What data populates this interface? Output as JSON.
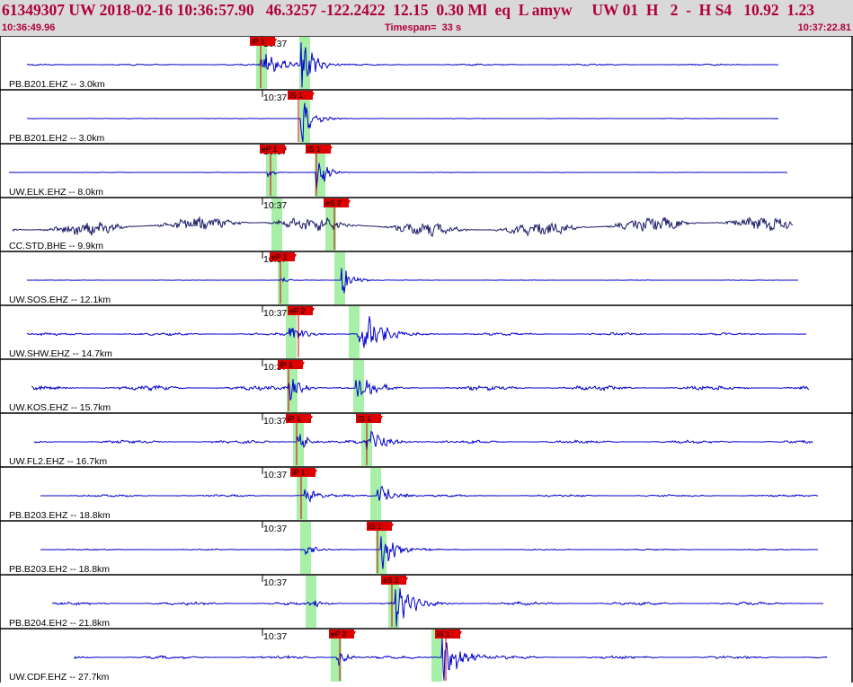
{
  "header": {
    "event_line": "61349307 UW 2018-02-16 10:36:57.90   46.3257 -122.2422  12.15  0.30 Ml  eq  L amyw     UW 01  H   2  -  H S4   10.92  1.23",
    "start_time": "10:36:49.96",
    "timespan": "Timespan=  33 s",
    "end_time": "10:37:22.81"
  },
  "minute_label": "10:37",
  "colors": {
    "trace": "#0000cc",
    "trace_dark": "#1a1a66",
    "pick_bg": "#dd0000",
    "band": "#a8f0a8",
    "header_text": "#b0003a",
    "header_bg": "#d9d9d9"
  },
  "panels": [
    {
      "station": "PB.B201.EHZ -- 3.0km",
      "picks": [
        {
          "label": "iP 1",
          "x": 278
        }
      ],
      "bands": [
        285,
        333
      ],
      "noise": 0.18,
      "onsets": [
        [
          290,
          2.0,
          0.05
        ],
        [
          335,
          4.2,
          0.08
        ]
      ],
      "start": 30,
      "end": 866
    },
    {
      "station": "PB.B201.EH2 -- 3.0km",
      "picks": [
        {
          "label": "iS 1",
          "x": 320
        }
      ],
      "bands": [
        333
      ],
      "noise": 0.05,
      "onsets": [
        [
          335,
          3.8,
          0.09
        ]
      ],
      "start": 30,
      "end": 866
    },
    {
      "station": "UW.ELK.EHZ -- 8.0km",
      "picks": [
        {
          "label": "eP 1",
          "x": 289
        },
        {
          "label": "iS 1",
          "x": 340
        }
      ],
      "bands": [
        296,
        350
      ],
      "noise": 0.05,
      "onsets": [
        [
          298,
          0.9,
          0.15
        ],
        [
          352,
          3.5,
          0.12
        ]
      ],
      "start": 10,
      "end": 876
    },
    {
      "station": "CC.STD.BHE -- 9.9km",
      "picks": [
        {
          "label": "eS 2",
          "x": 360
        }
      ],
      "bands": [
        302,
        362
      ],
      "noise": 1.6,
      "onsets": [],
      "start": 14,
      "end": 882,
      "dark": true
    },
    {
      "station": "UW.SOS.EHZ -- 12.1km",
      "picks": [
        {
          "label": "eP 1",
          "x": 300
        }
      ],
      "bands": [
        309,
        372
      ],
      "noise": 0.05,
      "onsets": [
        [
          312,
          0.8,
          0.2
        ],
        [
          380,
          3.2,
          0.11
        ]
      ],
      "start": 30,
      "end": 888
    },
    {
      "station": "UW.SHW.EHZ -- 14.7km",
      "picks": [
        {
          "label": "eP 2",
          "x": 320
        }
      ],
      "bands": [
        318,
        388
      ],
      "noise": 0.3,
      "onsets": [
        [
          322,
          2.0,
          0.08
        ],
        [
          398,
          4.5,
          0.05
        ]
      ],
      "start": 30,
      "end": 897
    },
    {
      "station": "UW.KOS.EHZ -- 15.7km",
      "picks": [
        {
          "label": "iP 1",
          "x": 309
        }
      ],
      "bands": [
        319,
        393
      ],
      "noise": 0.55,
      "onsets": [
        [
          321,
          2.2,
          0.09
        ],
        [
          396,
          3.2,
          0.08
        ]
      ],
      "start": 35,
      "end": 900
    },
    {
      "station": "UW.FL2.EHZ -- 16.7km",
      "picks": [
        {
          "label": "iP 1",
          "x": 318
        },
        {
          "label": "iS 1",
          "x": 396
        }
      ],
      "bands": [
        326,
        402
      ],
      "noise": 0.35,
      "onsets": [
        [
          330,
          1.8,
          0.1
        ],
        [
          408,
          3.0,
          0.07
        ]
      ],
      "start": 38,
      "end": 904
    },
    {
      "station": "PB.B203.EHZ -- 18.8km",
      "picks": [
        {
          "label": "iP 1",
          "x": 323
        }
      ],
      "bands": [
        330,
        412
      ],
      "noise": 0.25,
      "onsets": [
        [
          336,
          2.3,
          0.1
        ],
        [
          420,
          1.8,
          0.06
        ]
      ],
      "start": 45,
      "end": 910
    },
    {
      "station": "PB.B203.EH2 -- 18.8km",
      "picks": [
        {
          "label": "iS 1",
          "x": 408
        }
      ],
      "bands": [
        334,
        418
      ],
      "noise": 0.15,
      "onsets": [
        [
          340,
          1.2,
          0.1
        ],
        [
          424,
          3.0,
          0.07
        ]
      ],
      "start": 45,
      "end": 910
    },
    {
      "station": "PB.B204.EH2 -- 21.8km",
      "picks": [
        {
          "label": "eS 2",
          "x": 424
        }
      ],
      "bands": [
        340,
        432
      ],
      "noise": 0.35,
      "onsets": [
        [
          345,
          0.9,
          0.1
        ],
        [
          440,
          3.5,
          0.06
        ]
      ],
      "start": 58,
      "end": 916
    },
    {
      "station": "UW.CDF.EHZ -- 27.7km",
      "picks": [
        {
          "label": "eP 2",
          "x": 366
        },
        {
          "label": "iS 1",
          "x": 484
        }
      ],
      "bands": [
        368,
        480
      ],
      "noise": 0.35,
      "onsets": [
        [
          375,
          1.2,
          0.1
        ],
        [
          492,
          4.0,
          0.06
        ]
      ],
      "start": 82,
      "end": 920
    }
  ]
}
